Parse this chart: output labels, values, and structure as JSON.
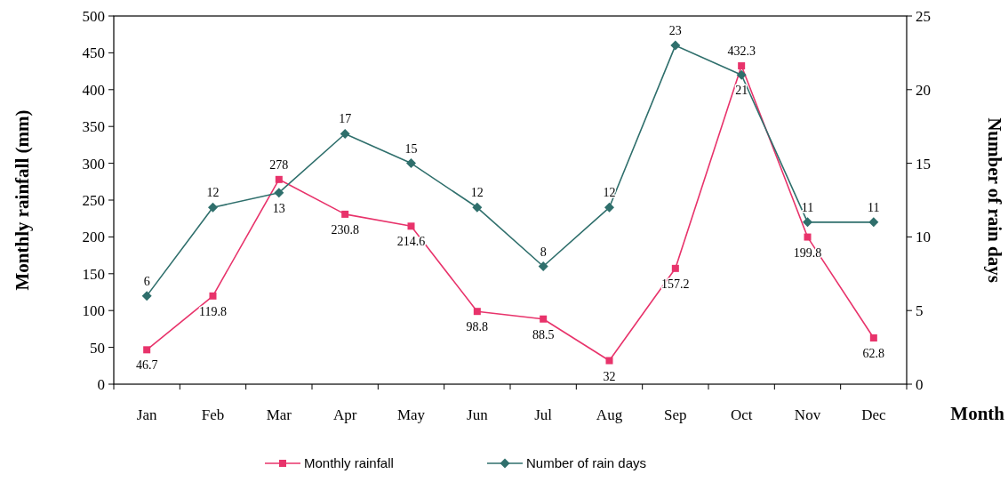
{
  "chart_data": {
    "type": "line",
    "xlabel": "Month",
    "ylabel": "Monthly rainfall (mm)",
    "y2label": "Number of rain days",
    "categories": [
      "Jan",
      "Feb",
      "Mar",
      "Apr",
      "May",
      "Jun",
      "Jul",
      "Aug",
      "Sep",
      "Oct",
      "Nov",
      "Dec"
    ],
    "series": [
      {
        "name": "Monthly rainfall",
        "color": "#e8336b",
        "marker": "square",
        "values": [
          46.7,
          119.8,
          278,
          230.8,
          214.6,
          98.8,
          88.5,
          32,
          157.2,
          432.3,
          199.8,
          62.8
        ]
      },
      {
        "name": "Number of rain days",
        "color": "#2f6f6c",
        "marker": "diamond",
        "axis": "y2",
        "values": [
          6,
          12,
          13,
          17,
          15,
          12,
          8,
          12,
          23,
          21,
          11,
          11
        ]
      }
    ],
    "ylim": [
      0,
      500
    ],
    "yticks": [
      0,
      50,
      100,
      150,
      200,
      250,
      300,
      350,
      400,
      450,
      500
    ],
    "y2lim": [
      0,
      25
    ],
    "y2ticks": [
      0,
      5,
      10,
      15,
      20,
      25
    ],
    "data_labels": true,
    "grid": false,
    "legend": "bottom"
  }
}
